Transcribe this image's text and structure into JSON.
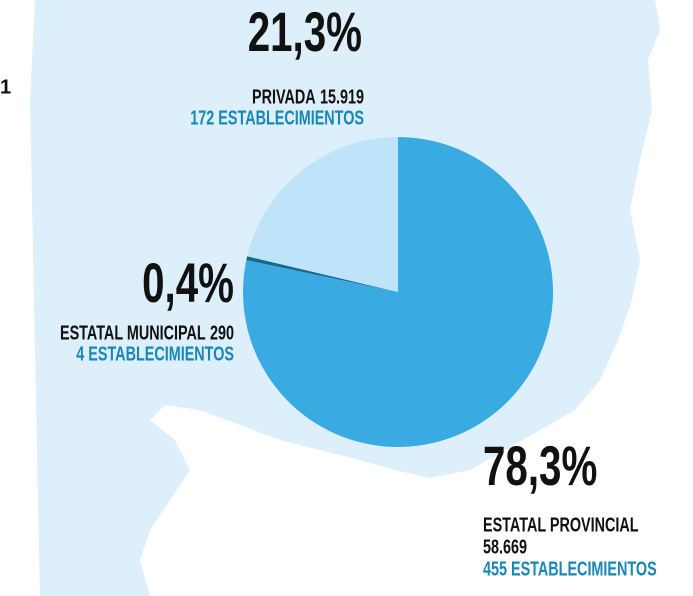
{
  "edge_text": "1",
  "chart_data": {
    "type": "pie",
    "categories": [
      "ESTATAL PROVINCIAL",
      "ESTATAL MUNICIPAL",
      "PRIVADA"
    ],
    "counts": [
      "58.669",
      "290",
      "15.919"
    ],
    "establishments": [
      "455 ESTABLECIMIENTOS",
      "4 ESTABLECIMIENTOS",
      "172 ESTABLECIMIENTOS"
    ],
    "values": [
      78.3,
      0.4,
      21.3
    ],
    "value_labels": [
      "78,3%",
      "0,4%",
      "21,3%"
    ],
    "colors": [
      "#3aaae2",
      "#17698f",
      "#bfe3f8"
    ]
  }
}
